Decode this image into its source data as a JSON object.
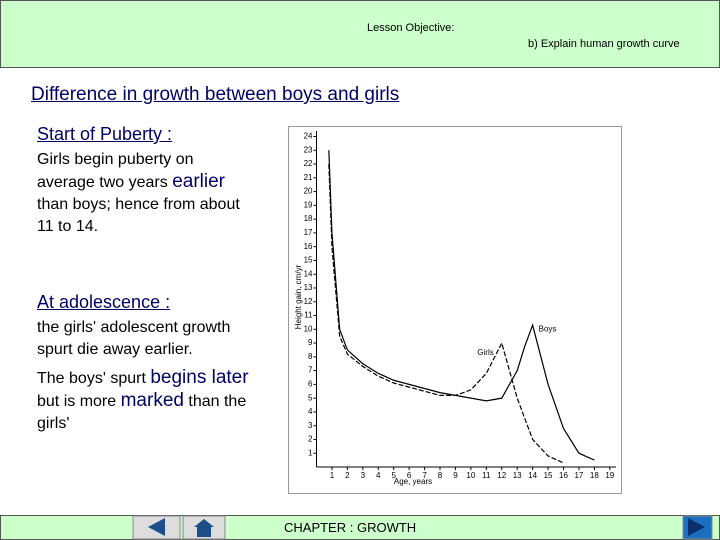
{
  "header": {
    "lesson_objective": "Lesson Objective:",
    "objective": "b)  Explain human growth curve"
  },
  "title": "Difference in growth between boys and girls",
  "sections": [
    {
      "heading": "Start of Puberty :",
      "paragraphs": [
        [
          "Girls begin puberty on average two years ",
          "earlier",
          " than boys; hence from about 11 to 14."
        ]
      ]
    },
    {
      "heading": "At adolescence :",
      "paragraphs": [
        [
          "the girls' adolescent growth spurt die away earlier."
        ],
        [
          "The boys' spurt ",
          "begins later",
          " but is more ",
          "marked",
          " than the girls'"
        ]
      ]
    }
  ],
  "chart_data": {
    "type": "line",
    "x_label": "Age, years",
    "y_label": "Height gain, cm/yr",
    "x": [
      0.8,
      1,
      1.5,
      2,
      3,
      4,
      5,
      6,
      7,
      8,
      9,
      10,
      11,
      12,
      13,
      13.5,
      14,
      15,
      16,
      17,
      18
    ],
    "series": [
      {
        "name": "Boys",
        "color": "#000000",
        "dashed": false,
        "values": [
          23,
          17,
          10,
          8.5,
          7.5,
          6.8,
          6.3,
          6,
          5.7,
          5.4,
          5.2,
          5,
          4.8,
          5,
          7,
          8.8,
          10.3,
          6,
          2.8,
          1,
          0.5
        ]
      },
      {
        "name": "Girls",
        "color": "#000000",
        "dashed": true,
        "values": [
          22,
          16,
          9.5,
          8.2,
          7.3,
          6.6,
          6.1,
          5.8,
          5.5,
          5.2,
          5.2,
          5.6,
          6.8,
          9,
          5,
          3.5,
          2,
          0.8,
          0.3,
          null,
          null
        ]
      }
    ],
    "xlim": [
      0,
      19.4
    ],
    "ylim": [
      0,
      24.4
    ],
    "xticks": [
      1,
      2,
      3,
      4,
      5,
      6,
      7,
      8,
      9,
      10,
      11,
      12,
      13,
      14,
      15,
      16,
      17,
      18,
      19
    ],
    "yticks": [
      1,
      2,
      3,
      4,
      5,
      6,
      7,
      8,
      9,
      10,
      11,
      12,
      13,
      14,
      15,
      16,
      17,
      18,
      19,
      20,
      21,
      22,
      23,
      24
    ]
  },
  "footer": {
    "chapter": "CHAPTER : GROWTH"
  }
}
